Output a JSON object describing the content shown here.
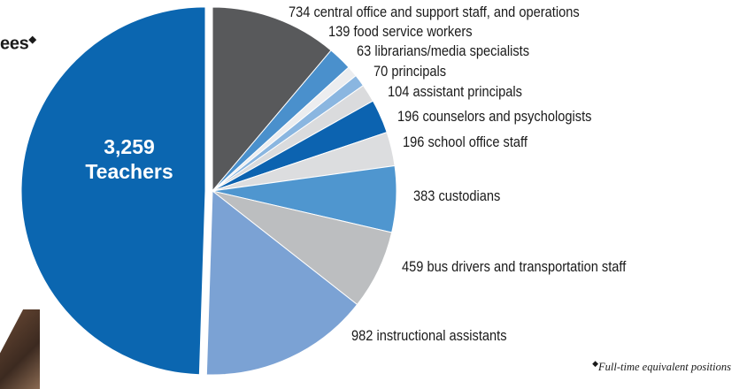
{
  "header": {
    "title_fragment": "ees",
    "title_marker": "◆"
  },
  "chart_data": {
    "type": "pie",
    "start_angle_deg": 0,
    "separated_slice": "Teachers",
    "slices": [
      {
        "label": "central office and support staff, and operations",
        "value": 734,
        "display": "734 central office and support staff, and operations",
        "color": "#58595b"
      },
      {
        "label": "food service workers",
        "value": 139,
        "display": "139 food service workers",
        "color": "#4a90cc"
      },
      {
        "label": "librarians/media specialists",
        "value": 63,
        "display": "63 librarians/media specialists",
        "color": "#ecedef"
      },
      {
        "label": "principals",
        "value": 70,
        "display": "70 principals",
        "color": "#8ab6e0"
      },
      {
        "label": "assistant principals",
        "value": 104,
        "display": "104 assistant principals",
        "color": "#dadbdd"
      },
      {
        "label": "counselors and psychologists",
        "value": 196,
        "display": "196 counselors and psychologists",
        "color": "#0c63b0"
      },
      {
        "label": "school office staff",
        "value": 196,
        "display": "196 school office staff",
        "color": "#dcdddf"
      },
      {
        "label": "custodians",
        "value": 383,
        "display": "383 custodians",
        "color": "#4f96cf"
      },
      {
        "label": "bus drivers and transportation staff",
        "value": 459,
        "display": "459 bus drivers and transportation staff",
        "color": "#bcbec0"
      },
      {
        "label": "instructional assistants",
        "value": 982,
        "display": "982 instructional assistants",
        "color": "#7ba2d4"
      },
      {
        "label": "Teachers",
        "value": 3259,
        "display_value": "3,259",
        "display_label": "Teachers",
        "color": "#0b66b0"
      }
    ]
  },
  "footnote": {
    "marker": "◆",
    "text": "Full-time equivalent positions"
  }
}
